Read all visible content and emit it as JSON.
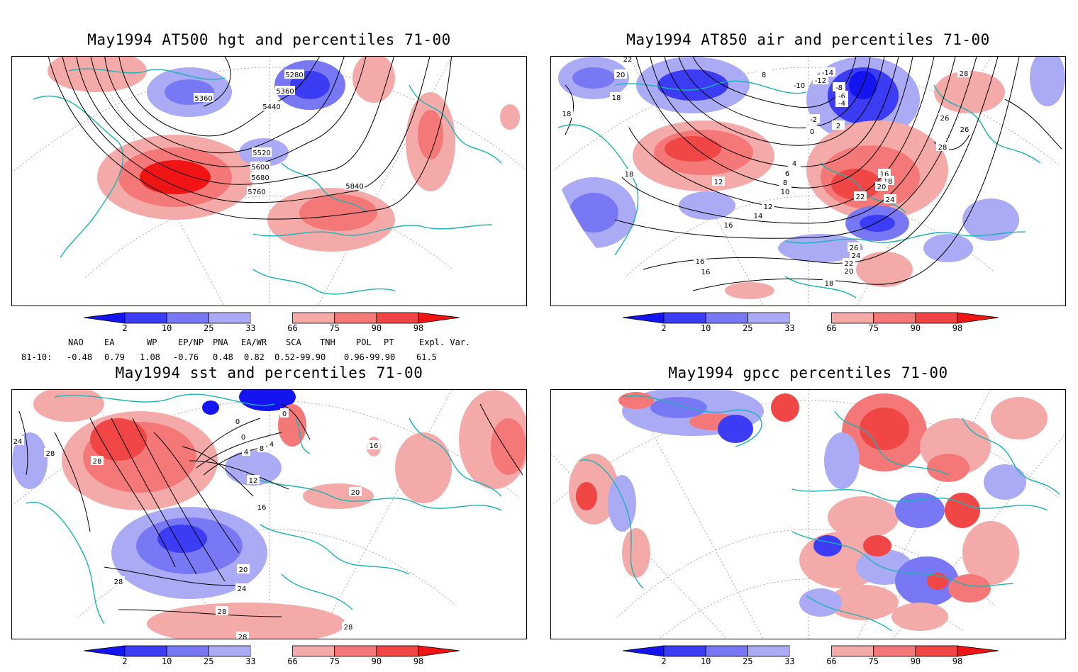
{
  "panels": [
    {
      "id": "hgt",
      "title": "May1994 AT500 hgt and percentiles 71-00",
      "contour_labels": [
        "5280",
        "5360",
        "5360",
        "5440",
        "5520",
        "5600",
        "5680",
        "5760",
        "5840"
      ]
    },
    {
      "id": "air",
      "title": "May1994 AT850 air and percentiles 71-00",
      "contour_labels": [
        "22",
        "20",
        "18",
        "18",
        "18",
        "8",
        "-14",
        "-12",
        "-10",
        "-8",
        "-6",
        "-4",
        "-2",
        "0",
        "2",
        "4",
        "6",
        "8",
        "10",
        "12",
        "12",
        "14",
        "16",
        "16",
        "16",
        "16",
        "18",
        "20",
        "22",
        "24",
        "26",
        "26",
        "24",
        "22",
        "20",
        "18",
        "26",
        "28",
        "28"
      ]
    },
    {
      "id": "sst",
      "title": "May1994 sst and percentiles 71-00",
      "contour_labels": [
        "24",
        "28",
        "28",
        "0",
        "0",
        "0",
        "4",
        "8",
        "4",
        "12",
        "16",
        "16",
        "20",
        "20",
        "24",
        "28",
        "28",
        "28",
        "28"
      ]
    },
    {
      "id": "gpcc",
      "title": "May1994 gpcc percentiles 71-00",
      "contour_labels": []
    }
  ],
  "colorbar": {
    "labels": [
      "2",
      "10",
      "25",
      "33",
      "66",
      "75",
      "90",
      "98"
    ],
    "colors": [
      "#1414f0",
      "#3c3cf5",
      "#7878f5",
      "#aaaaf5",
      "#ffffff",
      "#f5aaaa",
      "#f57878",
      "#f04646",
      "#f01414"
    ]
  },
  "indices": {
    "header": [
      "NAO",
      "EA",
      "WP",
      "EP/NP",
      "PNA",
      "EA/WR",
      "SCA",
      "TNH",
      "POL",
      "PT",
      "Expl. Var."
    ],
    "row_label": "81-10:",
    "values": [
      "-0.48",
      "0.79",
      "1.08",
      "-0.76",
      "0.48",
      "0.82",
      "0.52-99.90",
      "0.96-99.90",
      "61.5"
    ]
  },
  "map_colors": {
    "coast": "#19b4b4",
    "contour": "#000000",
    "grid": "#aaaaaa"
  }
}
